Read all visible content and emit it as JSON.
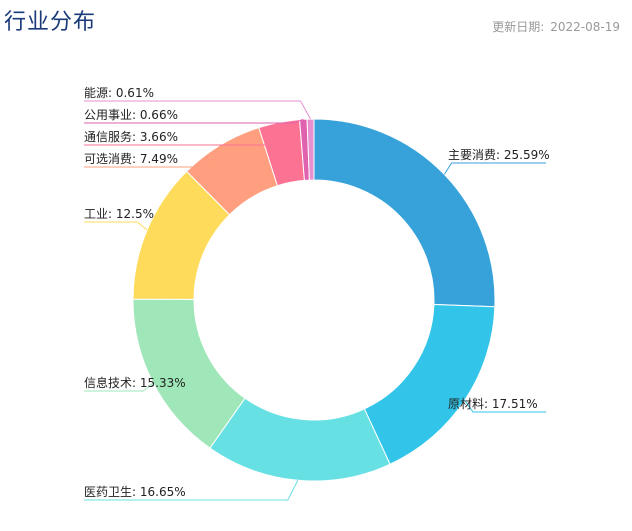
{
  "header": {
    "title": "行业分布",
    "date_label": "更新日期:",
    "date_value": "2022-08-19"
  },
  "chart_data": {
    "type": "pie",
    "variant": "donut",
    "value_suffix": "%",
    "label_separator": ": ",
    "series": [
      {
        "name": "主要消费",
        "value": 25.59,
        "color": "#37a2da"
      },
      {
        "name": "原材料",
        "value": 17.51,
        "color": "#32c5e9"
      },
      {
        "name": "医药卫生",
        "value": 16.65,
        "color": "#67e0e3"
      },
      {
        "name": "信息技术",
        "value": 15.33,
        "color": "#9fe6b8"
      },
      {
        "name": "工业",
        "value": 12.5,
        "color": "#ffdb5c"
      },
      {
        "name": "可选消费",
        "value": 7.49,
        "color": "#ff9f7f"
      },
      {
        "name": "通信服务",
        "value": 3.66,
        "color": "#fb7293"
      },
      {
        "name": "公用事业",
        "value": 0.66,
        "color": "#e062ae"
      },
      {
        "name": "能源",
        "value": 0.61,
        "color": "#e690d1"
      }
    ]
  }
}
